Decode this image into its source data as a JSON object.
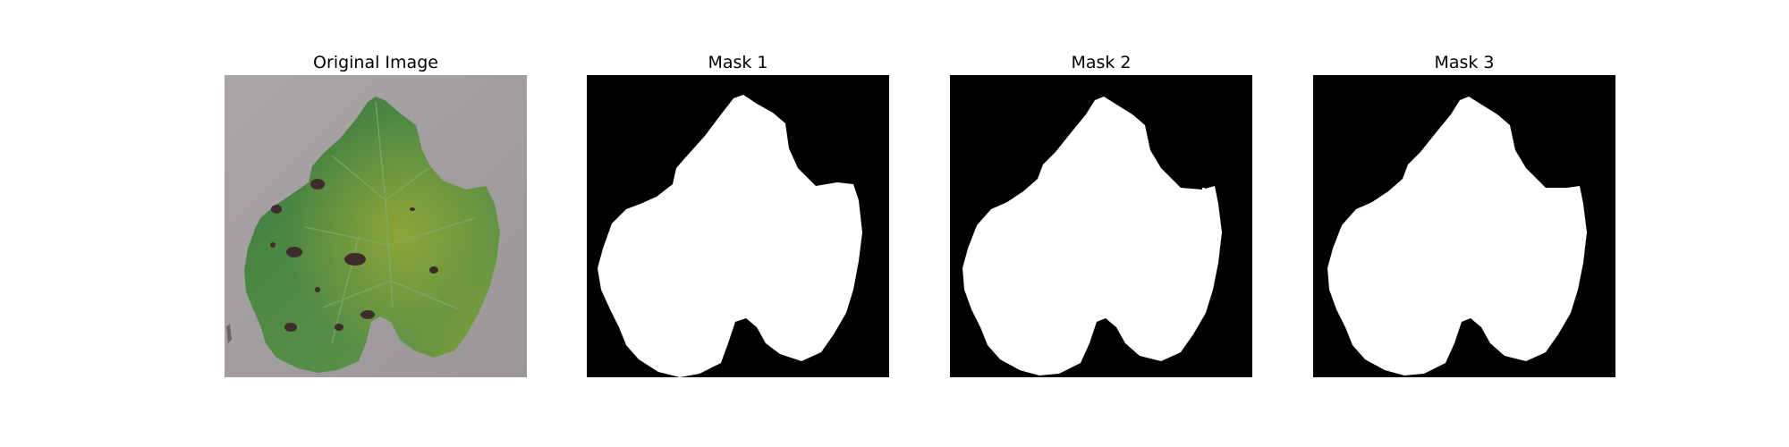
{
  "figure": {
    "panels": [
      {
        "title": "Original Image",
        "kind": "photo",
        "depicts": "green grape leaf with dark brown spots on grey background"
      },
      {
        "title": "Mask 1",
        "kind": "mask"
      },
      {
        "title": "Mask 2",
        "kind": "mask"
      },
      {
        "title": "Mask 3",
        "kind": "mask"
      }
    ],
    "colors": {
      "mask_background": "#000000",
      "mask_foreground": "#ffffff",
      "photo_background": "#a29e9f",
      "leaf_green": "#4f8a45",
      "leaf_dark": "#3b6b35",
      "leaf_yellow": "#8ea534",
      "spot": "#3f2c2a"
    }
  }
}
